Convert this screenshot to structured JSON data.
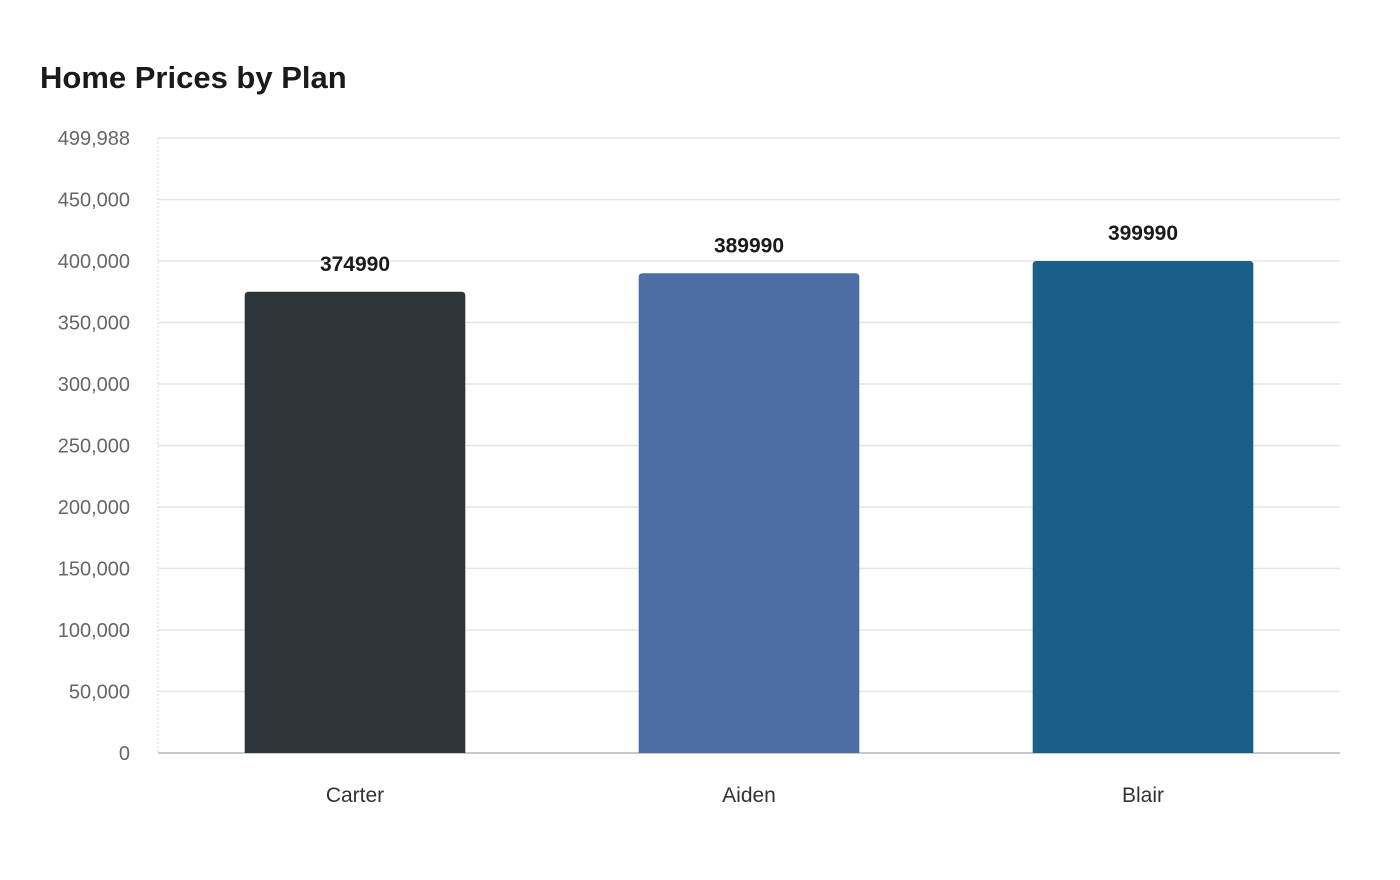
{
  "chart_data": {
    "type": "bar",
    "title": "Home Prices by Plan",
    "xlabel": "",
    "ylabel": "",
    "categories": [
      "Carter",
      "Aiden",
      "Blair"
    ],
    "values": [
      374990,
      389990,
      399990
    ],
    "data_labels": [
      "374990",
      "389990",
      "399990"
    ],
    "colors": [
      "#2e3538",
      "#4c6ea4",
      "#186088"
    ],
    "ylim": [
      0,
      499988
    ],
    "yticks": [
      0,
      50000,
      100000,
      150000,
      200000,
      250000,
      300000,
      350000,
      400000,
      450000,
      499988
    ],
    "ytick_labels": [
      "0",
      "50,000",
      "100,000",
      "150,000",
      "200,000",
      "250,000",
      "300,000",
      "350,000",
      "400,000",
      "450,000",
      "499,988"
    ],
    "grid": true,
    "legend": "none"
  }
}
